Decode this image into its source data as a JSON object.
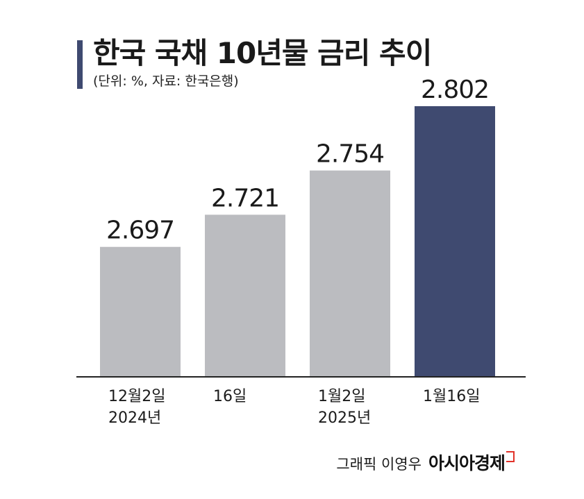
{
  "title": "한국 국채 10년물 금리 추이",
  "subtitle": "(단위: %, 자료: 한국은행)",
  "credit": {
    "text": "그래픽 이영우",
    "brand": "아시아경제"
  },
  "colors": {
    "accent": "#3f4a70",
    "bar_default": "#bbbcc0",
    "highlight": "#3f4a70"
  },
  "chart_data": {
    "type": "bar",
    "title": "한국 국채 10년물 금리 추이",
    "subtitle": "(단위: %, 자료: 한국은행)",
    "categories": [
      [
        "12월2일",
        "2024년"
      ],
      [
        "16일"
      ],
      [
        "1월2일",
        "2025년"
      ],
      [
        "1월16일"
      ]
    ],
    "values": [
      2.697,
      2.721,
      2.754,
      2.802
    ],
    "value_labels": [
      "2.697",
      "2.721",
      "2.754",
      "2.802"
    ],
    "highlight_index": 3,
    "ylim": [
      2.6,
      2.802
    ],
    "grid": false,
    "legend": "none"
  }
}
